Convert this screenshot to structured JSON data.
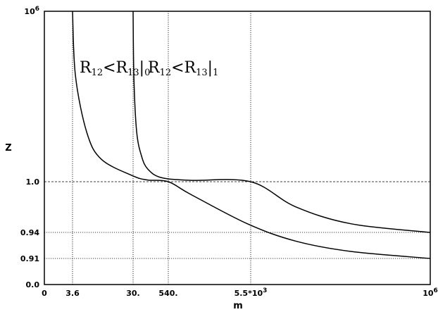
{
  "chart_data": {
    "type": "line",
    "xlabel": "m",
    "ylabel": "Z",
    "x_ticks": [
      {
        "label": "0"
      },
      {
        "label": "3.6"
      },
      {
        "label": "30."
      },
      {
        "label": "540."
      },
      {
        "label": "5.5*10",
        "sup": "3"
      },
      {
        "label": "10",
        "sup": "6"
      }
    ],
    "y_ticks": [
      {
        "label": "0.0"
      },
      {
        "label": "0.91"
      },
      {
        "label": "0.94"
      },
      {
        "label": "1.0"
      },
      {
        "label": "10",
        "sup": "6"
      }
    ],
    "annotations": [
      {
        "parts": [
          "R",
          "12",
          "<R",
          "13",
          "|",
          "0"
        ]
      },
      {
        "parts": [
          "R",
          "12",
          "<R",
          "13",
          "|",
          "1"
        ]
      }
    ],
    "series": [
      {
        "x": [
          3.6,
          4,
          6,
          10,
          30,
          100,
          540,
          1000,
          5000,
          20000,
          100000,
          1000000
        ],
        "y": [
          1000000,
          5000,
          50,
          6,
          1.6,
          1.15,
          1.0,
          0.985,
          0.95,
          0.93,
          0.918,
          0.91
        ],
        "color": "#000000"
      },
      {
        "x": [
          30,
          32,
          40,
          60,
          100,
          300,
          1000,
          5500,
          20000,
          100000,
          1000000
        ],
        "y": [
          1000000,
          5000,
          60,
          8,
          2.8,
          1.4,
          1.12,
          1.0,
          0.97,
          0.95,
          0.94
        ],
        "color": "#000000"
      }
    ],
    "reference_lines": [
      {
        "axis": "x",
        "value": 3.6
      },
      {
        "axis": "x",
        "value": 30
      },
      {
        "axis": "x",
        "value": 540
      },
      {
        "axis": "x",
        "value": 5500
      },
      {
        "axis": "y",
        "value": 1.0
      },
      {
        "axis": "y",
        "value": 0.94
      },
      {
        "axis": "y",
        "value": 0.91
      }
    ],
    "grid": false,
    "legend": "none"
  }
}
